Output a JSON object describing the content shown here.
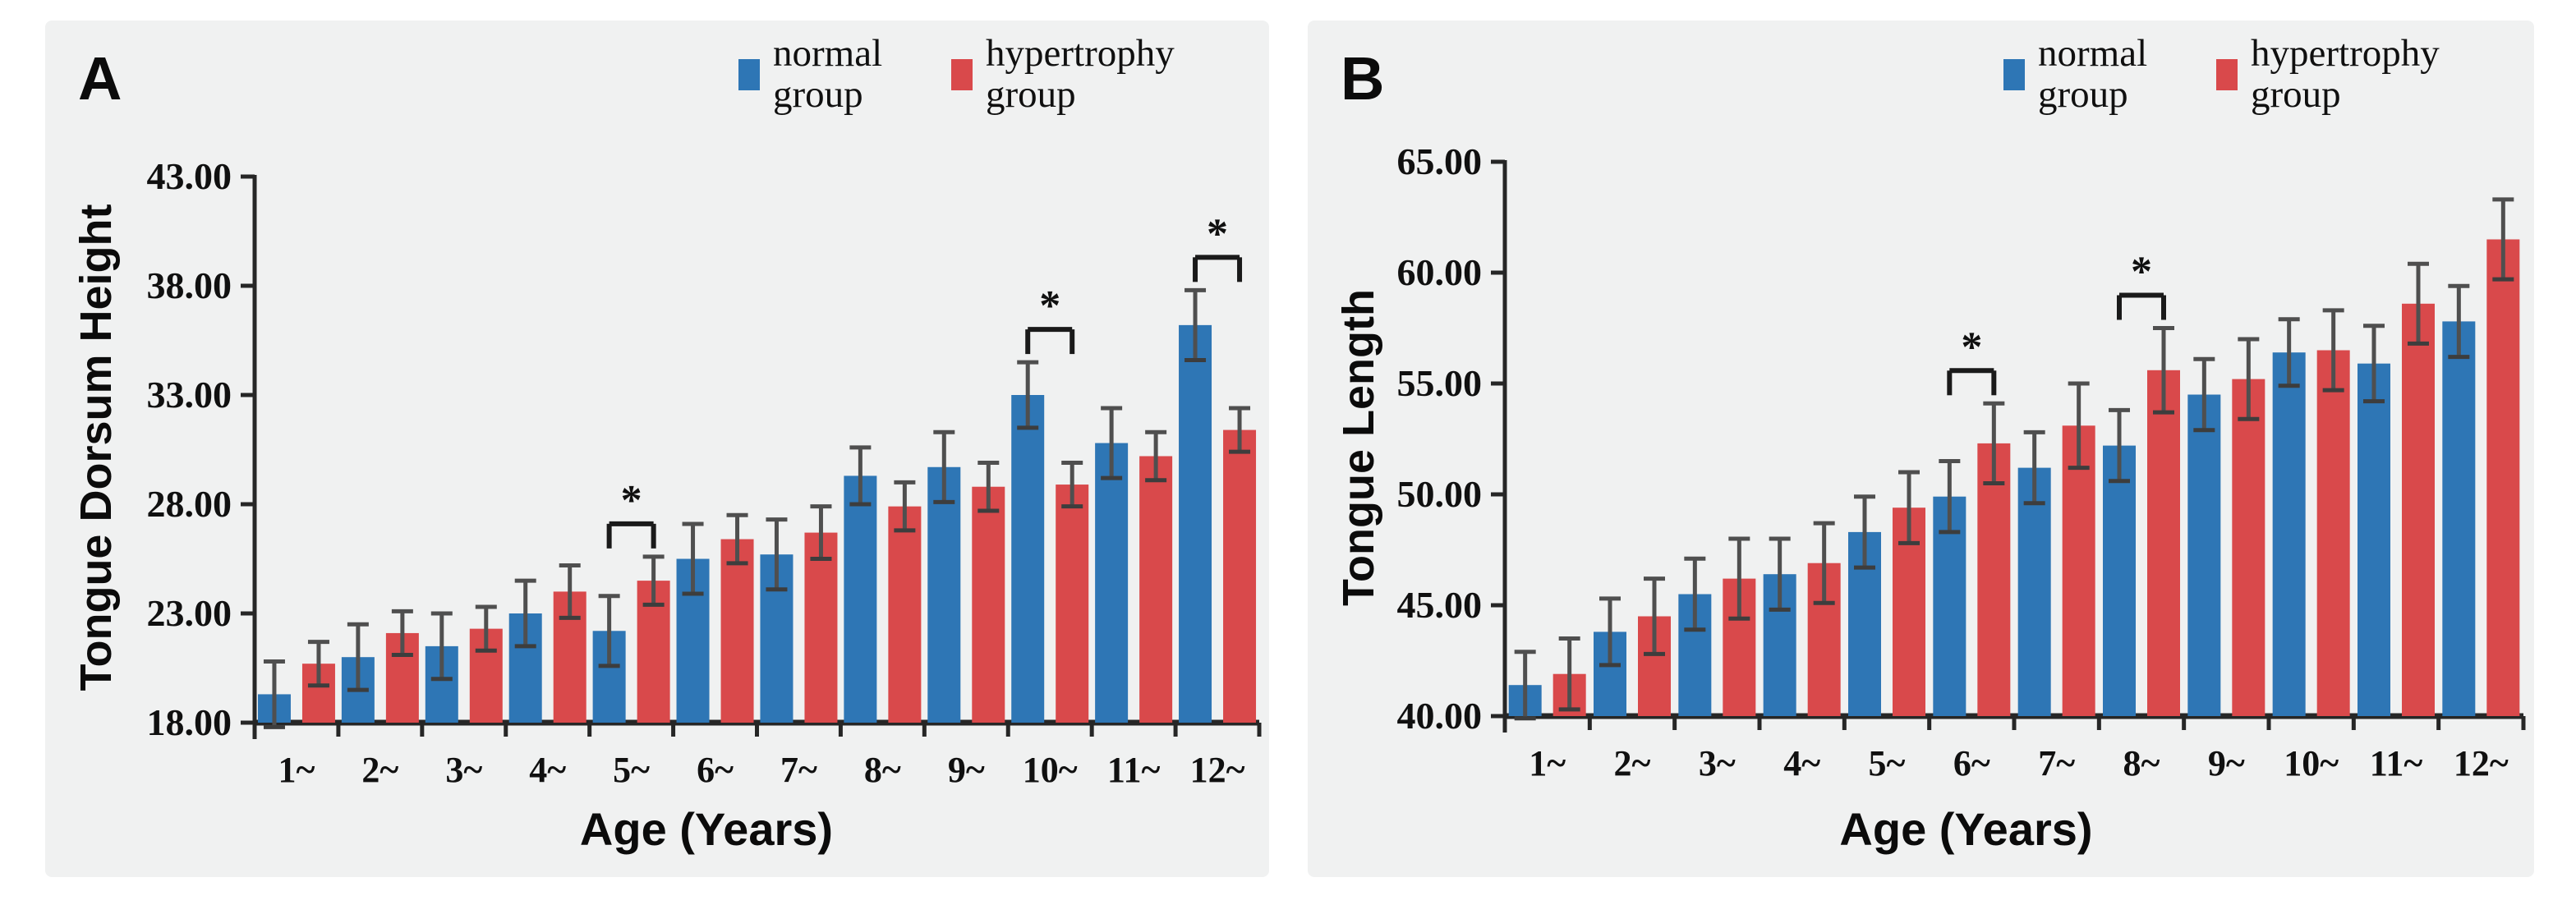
{
  "page": {
    "background": "#ffffff",
    "panel_background": "#f0f1f1",
    "axis_color": "#262626",
    "error_bar_color": "#4f4f4f",
    "normal_color": "#2e76b5",
    "hypertrophy_color": "#d9494b"
  },
  "chart_data": [
    {
      "id": "A",
      "type": "bar",
      "panel_label": "A",
      "title": "",
      "ylabel": "Tongue Dorsum Height",
      "xlabel": "Age (Years)",
      "categories": [
        "1~",
        "2~",
        "3~",
        "4~",
        "5~",
        "6~",
        "7~",
        "8~",
        "9~",
        "10~",
        "11~",
        "12~"
      ],
      "ylim": [
        18,
        43
      ],
      "ytick_labels": [
        "18.00",
        "23.00",
        "28.00",
        "33.00",
        "38.00",
        "43.00"
      ],
      "grid": false,
      "legend_position": "top-right",
      "series": [
        {
          "name": "normal group",
          "color": "#2e76b5",
          "values": [
            19.3,
            21.0,
            21.5,
            23.0,
            22.2,
            25.5,
            25.7,
            29.3,
            29.7,
            33.0,
            30.8,
            36.2
          ],
          "errors": [
            1.5,
            1.5,
            1.5,
            1.5,
            1.6,
            1.6,
            1.6,
            1.3,
            1.6,
            1.5,
            1.6,
            1.6
          ]
        },
        {
          "name": "hypertrophy group",
          "color": "#d9494b",
          "values": [
            20.7,
            22.1,
            22.3,
            24.0,
            24.5,
            26.4,
            26.7,
            27.9,
            28.8,
            28.9,
            30.2,
            31.4
          ],
          "errors": [
            1.0,
            1.0,
            1.0,
            1.2,
            1.1,
            1.1,
            1.2,
            1.1,
            1.1,
            1.0,
            1.1,
            1.0
          ]
        }
      ],
      "significance_markers": [
        {
          "category": "5~",
          "label": "*"
        },
        {
          "category": "10~",
          "label": "*"
        },
        {
          "category": "12~",
          "label": "*"
        }
      ]
    },
    {
      "id": "B",
      "type": "bar",
      "panel_label": "B",
      "title": "",
      "ylabel": "Tongue Length",
      "xlabel": "Age (Years)",
      "categories": [
        "1~",
        "2~",
        "3~",
        "4~",
        "5~",
        "6~",
        "7~",
        "8~",
        "9~",
        "10~",
        "11~",
        "12~"
      ],
      "ylim": [
        40,
        65
      ],
      "ytick_labels": [
        "40.00",
        "45.00",
        "50.00",
        "55.00",
        "60.00",
        "65.00"
      ],
      "grid": false,
      "legend_position": "top-right",
      "series": [
        {
          "name": "normal group",
          "color": "#2e76b5",
          "values": [
            41.4,
            43.8,
            45.5,
            46.4,
            48.3,
            49.9,
            51.2,
            52.2,
            54.5,
            56.4,
            55.9,
            57.8
          ],
          "errors": [
            1.5,
            1.5,
            1.6,
            1.6,
            1.6,
            1.6,
            1.6,
            1.6,
            1.6,
            1.5,
            1.7,
            1.6
          ]
        },
        {
          "name": "hypertrophy group",
          "color": "#d9494b",
          "values": [
            41.9,
            44.5,
            46.2,
            46.9,
            49.4,
            52.3,
            53.1,
            55.6,
            55.2,
            56.5,
            58.6,
            61.5
          ],
          "errors": [
            1.6,
            1.7,
            1.8,
            1.8,
            1.6,
            1.8,
            1.9,
            1.9,
            1.8,
            1.8,
            1.8,
            1.8
          ]
        }
      ],
      "significance_markers": [
        {
          "category": "6~",
          "label": "*"
        },
        {
          "category": "8~",
          "label": "*"
        }
      ]
    }
  ]
}
